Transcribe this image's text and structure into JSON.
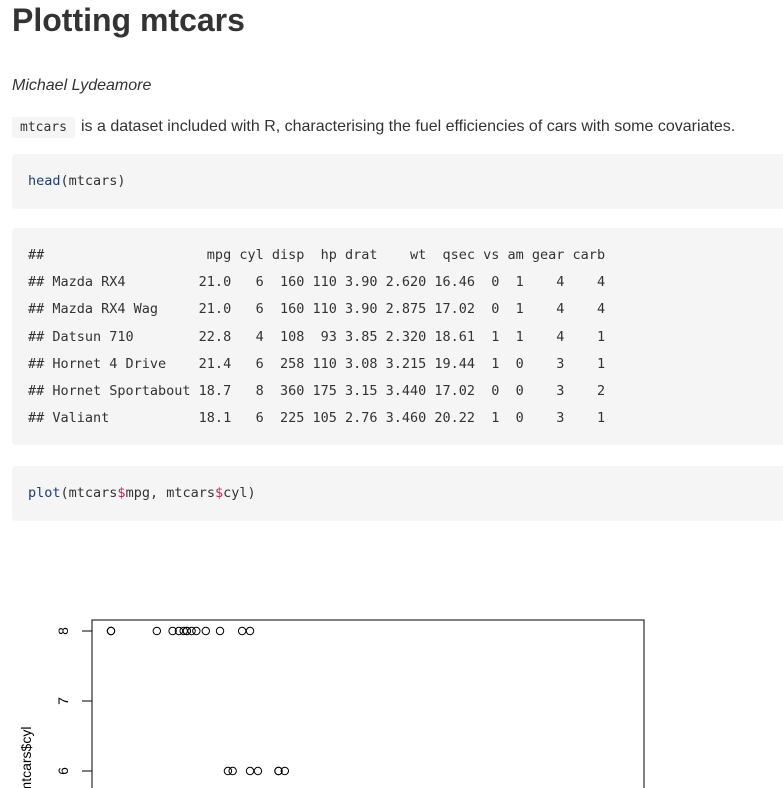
{
  "doc": {
    "title": "Plotting mtcars",
    "author": "Michael Lydeamore",
    "intro_code": "mtcars",
    "intro_text": "is a dataset included with R, characterising the fuel efficiencies of cars with some covariates."
  },
  "code1": {
    "fn": "head",
    "rest": "(mtcars)"
  },
  "output_lines": [
    "##                    mpg cyl disp  hp drat    wt  qsec vs am gear carb",
    "## Mazda RX4         21.0   6  160 110 3.90 2.620 16.46  0  1    4    4",
    "## Mazda RX4 Wag     21.0   6  160 110 3.90 2.875 17.02  0  1    4    4",
    "## Datsun 710        22.8   4  108  93 3.85 2.320 18.61  1  1    4    1",
    "## Hornet 4 Drive    21.4   6  258 110 3.08 3.215 19.44  1  0    3    1",
    "## Hornet Sportabout 18.7   8  360 175 3.15 3.440 17.02  0  0    3    2",
    "## Valiant           18.1   6  225 105 2.76 3.460 20.22  1  0    3    1"
  ],
  "code2": {
    "fn": "plot",
    "p1": "(mtcars",
    "op1": "$",
    "p2": "mpg, mtcars",
    "op2": "$",
    "p3": "cyl)"
  },
  "plot": {
    "ylabel": "mtcars$cyl",
    "y_ticks": [
      "6",
      "7",
      "8"
    ]
  },
  "chart_data": {
    "type": "scatter",
    "ylabel": "mtcars$cyl",
    "y_ticks": [
      6,
      7,
      8
    ],
    "series": [
      {
        "cyl": 8,
        "mpg": [
          10.4,
          10.4,
          13.3,
          14.3,
          14.7,
          15.0,
          15.2,
          15.2,
          15.5,
          15.8,
          16.4,
          17.3,
          18.7,
          19.2
        ]
      },
      {
        "cyl": 6,
        "mpg": [
          17.8,
          18.1,
          19.2,
          19.7,
          21.0,
          21.0,
          21.4
        ]
      }
    ]
  }
}
